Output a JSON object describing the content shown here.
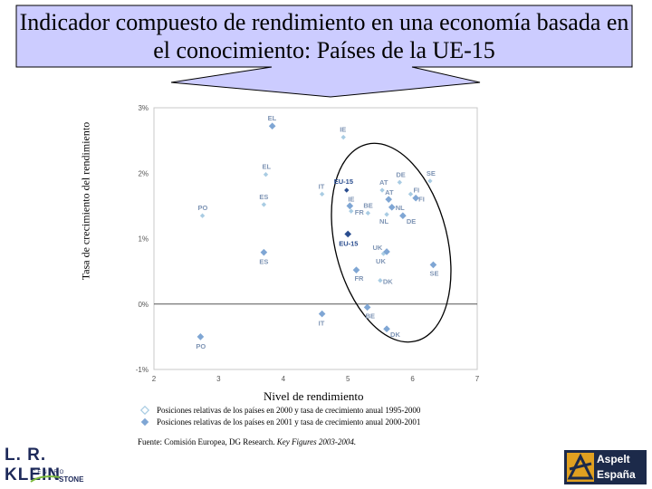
{
  "title": "Indicador compuesto de rendimiento en una economía basada en el conocimiento: Países de la UE-15",
  "legend": [
    {
      "label": "Posiciones relativas de los países en 2000 y tasa de crecimiento anual 1995-2000",
      "marker": "light-diamond"
    },
    {
      "label": "Posiciones relativas de los países en 2001 y tasa de crecimiento anual 2000-2001",
      "marker": "dark-diamond"
    }
  ],
  "source": {
    "prefix": "Fuente: Comisión Europea, DG Research. ",
    "italic": "Key Figures 2003-2004."
  },
  "logos": {
    "left": {
      "brand": "L. R. KLEIN",
      "line1": "CENTRO",
      "line2": "STONE"
    },
    "right": {
      "line1": "Aspelt",
      "line2": "España"
    }
  },
  "colors": {
    "callout_fill": "#ccccff",
    "marker_2000": "#a9cce3",
    "marker_2001": "#7fa6d4",
    "eu_marker": "#2a4d8f",
    "label": "#7f95b5"
  },
  "chart_data": {
    "type": "scatter",
    "xlabel": "Nivel de rendimiento",
    "ylabel": "Tasa de crecimiento del rendimiento",
    "xlim": [
      2,
      7
    ],
    "ylim": [
      -1,
      3
    ],
    "xticks": [
      2,
      3,
      4,
      5,
      6,
      7
    ],
    "yticks": [
      {
        "v": 3,
        "label": "3%"
      },
      {
        "v": 2,
        "label": "2%"
      },
      {
        "v": 1,
        "label": "1%"
      },
      {
        "v": 0,
        "label": "0%"
      },
      {
        "v": -1,
        "label": "-1%"
      }
    ],
    "zero_line": true,
    "series": [
      {
        "name": "Posiciones relativas de los países en 2000 y tasa de crecimiento anual 1995-2000",
        "points": [
          {
            "label": "IE",
            "x": 4.93,
            "y": 2.55
          },
          {
            "label": "EL",
            "x": 3.73,
            "y": 1.98
          },
          {
            "label": "ES",
            "x": 3.7,
            "y": 1.52
          },
          {
            "label": "PO",
            "x": 2.75,
            "y": 1.35
          },
          {
            "label": "IT",
            "x": 4.6,
            "y": 1.68
          },
          {
            "label": "EU-15",
            "x": 4.98,
            "y": 1.74
          },
          {
            "label": "AT",
            "x": 5.53,
            "y": 1.74
          },
          {
            "label": "DE",
            "x": 5.8,
            "y": 1.86
          },
          {
            "label": "FI",
            "x": 5.97,
            "y": 1.68
          },
          {
            "label": "SE",
            "x": 6.27,
            "y": 1.88
          },
          {
            "label": "BE",
            "x": 5.31,
            "y": 1.39
          },
          {
            "label": "NL",
            "x": 5.6,
            "y": 1.37
          },
          {
            "label": "UK",
            "x": 5.55,
            "y": 0.77
          },
          {
            "label": "DK",
            "x": 5.5,
            "y": 0.36
          },
          {
            "label": "FR",
            "x": 5.05,
            "y": 1.42
          }
        ]
      },
      {
        "name": "Posiciones relativas de los países en 2001 y tasa de crecimiento anual 2000-2001",
        "points": [
          {
            "label": "EL",
            "x": 3.83,
            "y": 2.72
          },
          {
            "label": "ES",
            "x": 3.7,
            "y": 0.79
          },
          {
            "label": "PO",
            "x": 2.72,
            "y": -0.5
          },
          {
            "label": "IT",
            "x": 4.6,
            "y": -0.15
          },
          {
            "label": "EU-15",
            "x": 5.0,
            "y": 1.07
          },
          {
            "label": "IE",
            "x": 5.03,
            "y": 1.5
          },
          {
            "label": "AT",
            "x": 5.63,
            "y": 1.6
          },
          {
            "label": "FI",
            "x": 6.05,
            "y": 1.62
          },
          {
            "label": "NL",
            "x": 5.68,
            "y": 1.48
          },
          {
            "label": "DE",
            "x": 5.85,
            "y": 1.35
          },
          {
            "label": "UK",
            "x": 5.6,
            "y": 0.8
          },
          {
            "label": "SE",
            "x": 6.32,
            "y": 0.6
          },
          {
            "label": "FR",
            "x": 5.13,
            "y": 0.52
          },
          {
            "label": "BE",
            "x": 5.3,
            "y": -0.05
          },
          {
            "label": "DK",
            "x": 5.6,
            "y": -0.38
          }
        ]
      }
    ]
  }
}
